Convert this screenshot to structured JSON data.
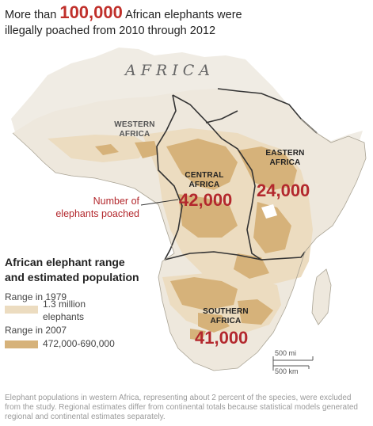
{
  "headline": {
    "prefix": "More than ",
    "number": "100,000",
    "suffix": " African elephants were",
    "line2": "illegally poached from 2010 through 2012"
  },
  "map": {
    "continent_label": "AFRICA",
    "regions": {
      "western": {
        "line1": "WESTERN",
        "line2": "AFRICA"
      },
      "central": {
        "line1": "CENTRAL",
        "line2": "AFRICA",
        "poached": "42,000"
      },
      "eastern": {
        "line1": "EASTERN",
        "line2": "AFRICA",
        "poached": "24,000"
      },
      "southern": {
        "line1": "SOUTHERN",
        "line2": "AFRICA",
        "poached": "41,000"
      }
    },
    "callout": {
      "line1": "Number of",
      "line2": "elephants poached"
    },
    "scale": {
      "mi": "500 mi",
      "km": "500 km"
    },
    "colors": {
      "land": "#eee8dd",
      "ocean": "#ffffff",
      "range_1979": "#ecdcc0",
      "range_2007": "#d6b27a",
      "border": "#333333",
      "accent": "#b3282d"
    }
  },
  "legend": {
    "title_line1": "African elephant range",
    "title_line2": "and estimated population",
    "range_1979_label": "Range in 1979",
    "range_1979_value_line1": "1.3 million",
    "range_1979_value_line2": "elephants",
    "range_2007_label": "Range in 2007",
    "range_2007_value": "472,000-690,000"
  },
  "footer": "Elephant populations in western Africa, representing about 2 percent of the species, were excluded from the study. Regional estimates differ from continental totals because statistical models generated regional and continental estimates separately."
}
